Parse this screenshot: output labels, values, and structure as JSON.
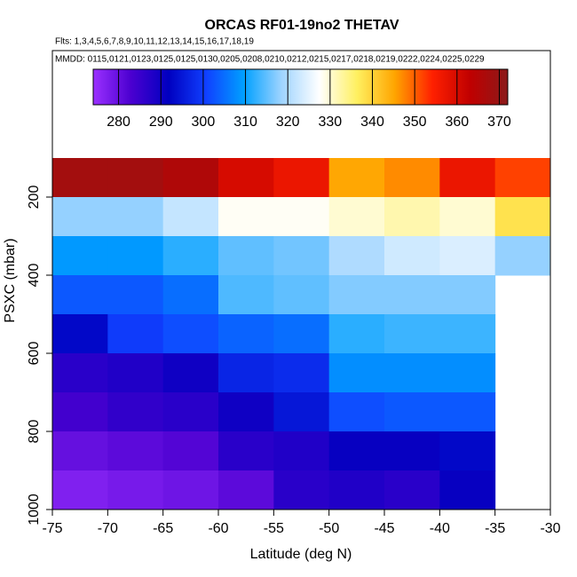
{
  "chart_data": {
    "type": "heatmap",
    "title": "ORCAS RF01-19no2 THETAV",
    "subtitle": "Flts: 1,3,4,5,6,7,8,9,10,11,12,13,14,15,16,17,18,19",
    "annotation": "MMDD: 0115,0121,0123,0125,0125,0130,0205,0208,0210,0212,0215,0217,0218,0219,0222,0224,0225,0229",
    "x_label": "Latitude (deg N)",
    "y_label": "PSXC (mbar)",
    "xlim": [
      -75,
      -30
    ],
    "xticks": [
      -75,
      -70,
      -65,
      -60,
      -55,
      -50,
      -45,
      -40,
      -35,
      -30
    ],
    "ylim": [
      1000,
      100
    ],
    "yticks": [
      200,
      400,
      600,
      800,
      1000
    ],
    "x_edges": [
      -75,
      -70,
      -65,
      -60,
      -55,
      -50,
      -45,
      -40,
      -35,
      -30
    ],
    "y_edges": [
      100,
      200,
      300,
      400,
      500,
      600,
      700,
      800,
      900,
      1000
    ],
    "values": [
      [
        368,
        368,
        366,
        360,
        357,
        345,
        347,
        357,
        352
      ],
      [
        318,
        318,
        322,
        328,
        328,
        330,
        332,
        330,
        338
      ],
      [
        309,
        309,
        312,
        315,
        316,
        320,
        323,
        324,
        318
      ],
      [
        303,
        303,
        305,
        314,
        315,
        317,
        317,
        317,
        null
      ],
      [
        293,
        300,
        302,
        304,
        305,
        312,
        313,
        313,
        null
      ],
      [
        287,
        288,
        290,
        297,
        298,
        308,
        308,
        308,
        null
      ],
      [
        284,
        286,
        287,
        290,
        295,
        302,
        303,
        303,
        null
      ],
      [
        280,
        281,
        282,
        287,
        288,
        291,
        291,
        293,
        null
      ],
      [
        277,
        278,
        279,
        281,
        287,
        288,
        287,
        291,
        null
      ]
    ],
    "clim": [
      274,
      372
    ],
    "cticks": [
      280,
      290,
      300,
      310,
      320,
      330,
      340,
      350,
      360,
      370
    ],
    "colormap": [
      "#9b30ff",
      "#4b00d0",
      "#0000c0",
      "#1040ff",
      "#00a0ff",
      "#9fd4ff",
      "#ffffff",
      "#fff060",
      "#ffa500",
      "#ff2000",
      "#c00000",
      "#8b1a1a"
    ]
  }
}
